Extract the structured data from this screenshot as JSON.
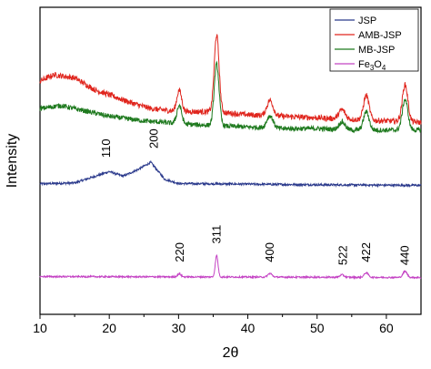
{
  "chart_data": {
    "type": "line",
    "title": "",
    "xlabel": "2θ",
    "ylabel": "Intensity",
    "xlim": [
      10,
      65
    ],
    "ylim": [
      0,
      100
    ],
    "xticks": [
      10,
      20,
      30,
      40,
      50,
      60
    ],
    "yticks_shown": false,
    "legend_position": "top-right",
    "grid": false,
    "legend": [
      {
        "label": "JSP",
        "color": "#2b3a8c"
      },
      {
        "label": "AMB-JSP",
        "color": "#e0261e"
      },
      {
        "label": "MB-JSP",
        "color": "#1f7a1f"
      },
      {
        "label": "Fe3O4",
        "color": "#c443c4"
      }
    ],
    "series": [
      {
        "name": "JSP",
        "color": "#2b3a8c",
        "baseline": 42,
        "background": [
          [
            10,
            42.5
          ],
          [
            15,
            42.8
          ],
          [
            18,
            45
          ],
          [
            20,
            46.5
          ],
          [
            22,
            45
          ],
          [
            24,
            47
          ],
          [
            26,
            49.5
          ],
          [
            28,
            44
          ],
          [
            30,
            42.6
          ],
          [
            40,
            42.4
          ],
          [
            50,
            42.2
          ],
          [
            65,
            42.0
          ]
        ],
        "noise": 0.35,
        "peaks": []
      },
      {
        "name": "AMB-JSP",
        "color": "#e0261e",
        "background": [
          [
            10,
            76
          ],
          [
            12,
            78
          ],
          [
            15,
            77
          ],
          [
            18,
            73
          ],
          [
            20,
            71.5
          ],
          [
            23,
            69
          ],
          [
            26,
            67
          ],
          [
            28,
            66.5
          ],
          [
            30,
            66
          ],
          [
            35,
            66
          ],
          [
            40,
            65
          ],
          [
            45,
            64.5
          ],
          [
            50,
            64
          ],
          [
            55,
            63.5
          ],
          [
            60,
            63
          ],
          [
            65,
            62.5
          ]
        ],
        "noise": 0.9,
        "peaks": [
          [
            30.1,
            7,
            0.35
          ],
          [
            35.5,
            25,
            0.35
          ],
          [
            43.2,
            5,
            0.45
          ],
          [
            53.6,
            3,
            0.45
          ],
          [
            57.1,
            8,
            0.4
          ],
          [
            62.7,
            12,
            0.4
          ]
        ]
      },
      {
        "name": "MB-JSP",
        "color": "#1f7a1f",
        "background": [
          [
            10,
            67
          ],
          [
            13,
            68
          ],
          [
            16,
            66.5
          ],
          [
            20,
            64.5
          ],
          [
            25,
            63
          ],
          [
            28,
            62.5
          ],
          [
            30,
            62
          ],
          [
            35,
            61.5
          ],
          [
            40,
            61
          ],
          [
            45,
            60.5
          ],
          [
            50,
            60.5
          ],
          [
            55,
            60
          ],
          [
            60,
            60
          ],
          [
            65,
            60
          ]
        ],
        "noise": 0.8,
        "peaks": [
          [
            30.1,
            6,
            0.35
          ],
          [
            35.5,
            20,
            0.35
          ],
          [
            43.2,
            4,
            0.45
          ],
          [
            53.6,
            2.5,
            0.45
          ],
          [
            57.1,
            6,
            0.4
          ],
          [
            62.7,
            10,
            0.4
          ]
        ]
      },
      {
        "name": "Fe3O4",
        "color": "#c443c4",
        "background": [
          [
            10,
            12.3
          ],
          [
            30,
            12.2
          ],
          [
            50,
            12.1
          ],
          [
            65,
            12.0
          ]
        ],
        "noise": 0.25,
        "peaks": [
          [
            30.1,
            1.0,
            0.25
          ],
          [
            35.5,
            7,
            0.2
          ],
          [
            43.2,
            1.2,
            0.3
          ],
          [
            53.6,
            0.8,
            0.3
          ],
          [
            57.1,
            1.5,
            0.3
          ],
          [
            62.7,
            2.0,
            0.3
          ]
        ]
      }
    ],
    "annotations": [
      {
        "text": "110",
        "x": 19.6,
        "y": 51
      },
      {
        "text": "200",
        "x": 26.5,
        "y": 54
      },
      {
        "text": "220",
        "x": 30.2,
        "y": 17
      },
      {
        "text": "311",
        "x": 35.5,
        "y": 23
      },
      {
        "text": "400",
        "x": 43.2,
        "y": 17
      },
      {
        "text": "522",
        "x": 53.8,
        "y": 16
      },
      {
        "text": "422",
        "x": 57.1,
        "y": 17
      },
      {
        "text": "440",
        "x": 62.7,
        "y": 16
      }
    ]
  }
}
